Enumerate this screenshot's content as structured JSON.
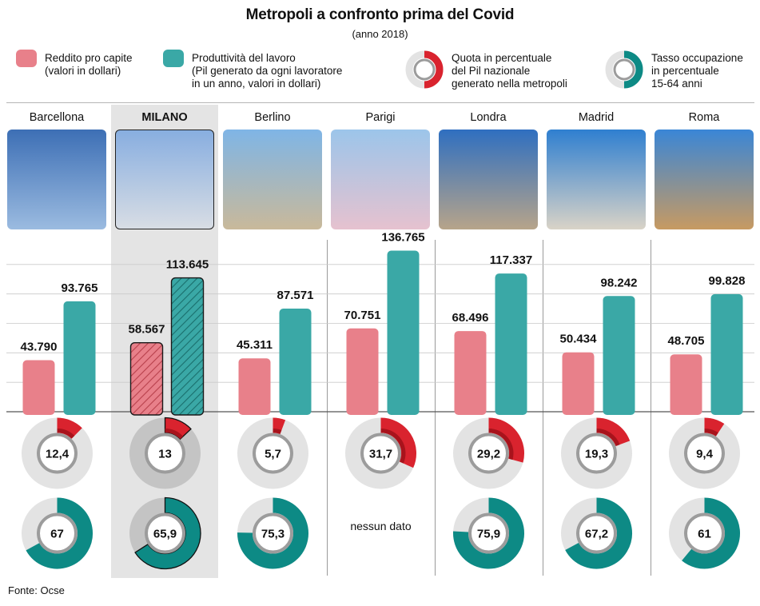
{
  "title": "Metropoli a confronto prima del Covid",
  "subtitle": "(anno 2018)",
  "colors": {
    "income": "#e8808a",
    "productivity": "#3aa8a6",
    "quota": "#d9232e",
    "quota_dark": "#a8131c",
    "occupazione": "#0d8a85",
    "ring_track": "#e3e3e3",
    "ring_inner": "#9c9c9c",
    "highlight": "#e4e4e4"
  },
  "legend": {
    "income": "Reddito pro capite\n(valori in dollari)",
    "productivity": "Produttività del lavoro\n(Pil generato da ogni lavoratore\nin un anno, valori in dollari)",
    "quota": "Quota in percentuale\ndel Pil nazionale\ngenerato nella metropoli",
    "occupazione": "Tasso occupazione\nin percentuale\n15-64 anni"
  },
  "cities": [
    {
      "name": "Barcellona",
      "photo_icon": "sagrada-familia-photo",
      "photo_colors": [
        "#3d6fb5",
        "#9bbbe0"
      ]
    },
    {
      "name": "MILANO",
      "photo_icon": "duomo-milano-photo",
      "photo_colors": [
        "#88aee0",
        "#d8dde4"
      ],
      "highlight": true
    },
    {
      "name": "Berlino",
      "photo_icon": "brandenburg-gate-photo",
      "photo_colors": [
        "#7fb5e6",
        "#c9b99a"
      ]
    },
    {
      "name": "Parigi",
      "photo_icon": "eiffel-tower-photo",
      "photo_colors": [
        "#9cc5ea",
        "#e6c2cf"
      ]
    },
    {
      "name": "Londra",
      "photo_icon": "big-ben-photo",
      "photo_colors": [
        "#2f6fc0",
        "#b7a48a"
      ]
    },
    {
      "name": "Madrid",
      "photo_icon": "palacio-real-photo",
      "photo_colors": [
        "#2f7fd0",
        "#d9d3c7"
      ]
    },
    {
      "name": "Roma",
      "photo_icon": "colosseum-photo",
      "photo_colors": [
        "#3a86d6",
        "#c79a62"
      ]
    }
  ],
  "source": "Fonte: Ocse",
  "chart_data": {
    "type": "bar",
    "categories": [
      "Barcellona",
      "MILANO",
      "Berlino",
      "Parigi",
      "Londra",
      "Madrid",
      "Roma"
    ],
    "series": [
      {
        "name": "Reddito pro capite",
        "values": [
          43790,
          58567,
          45311,
          70751,
          68496,
          50434,
          48705
        ],
        "labels": [
          "43.790",
          "58.567",
          "45.311",
          "70.751",
          "68.496",
          "50.434",
          "48.705"
        ]
      },
      {
        "name": "Produttività del lavoro",
        "values": [
          93765,
          113645,
          87571,
          136765,
          117337,
          98242,
          99828
        ],
        "labels": [
          "93.765",
          "113.645",
          "87.571",
          "136.765",
          "117.337",
          "98.242",
          "99.828"
        ]
      }
    ],
    "ylim": [
      0,
      150000
    ],
    "grid": true,
    "quota_pil": {
      "values": [
        12.4,
        13,
        5.7,
        31.7,
        29.2,
        19.3,
        9.4
      ],
      "labels": [
        "12,4",
        "13",
        "5,7",
        "31,7",
        "29,2",
        "19,3",
        "9,4"
      ]
    },
    "tasso_occupazione": {
      "values": [
        67,
        65.9,
        75.3,
        null,
        75.9,
        67.2,
        61
      ],
      "labels": [
        "67",
        "65,9",
        "75,3",
        "nessun dato",
        "75,9",
        "67,2",
        "61"
      ]
    },
    "highlight_category": "MILANO"
  }
}
